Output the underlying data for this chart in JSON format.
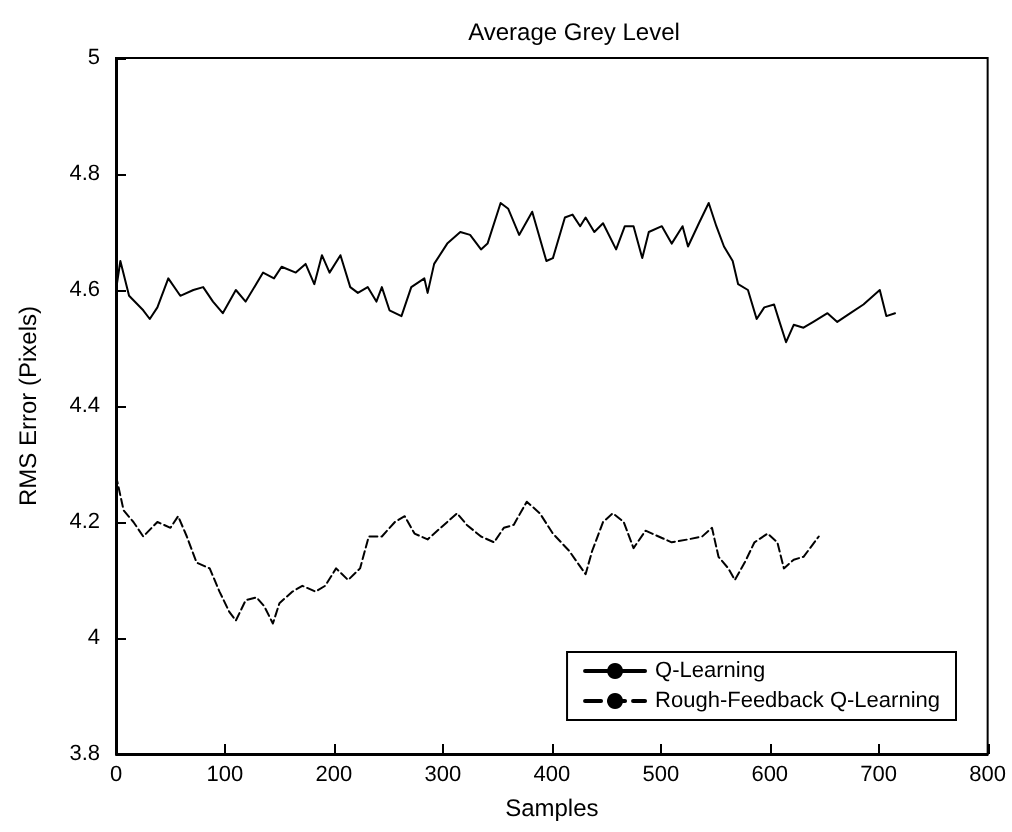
{
  "chart_data": {
    "type": "line",
    "title": "Average Grey Level",
    "xlabel": "Samples",
    "ylabel": "RMS Error (Pixels)",
    "xlim": [
      0,
      800
    ],
    "xticks": [
      0,
      100,
      200,
      300,
      400,
      500,
      600,
      700,
      800
    ],
    "ylim": [
      3.8,
      5
    ],
    "yticks": [
      3.8,
      4,
      4.2,
      4.4,
      4.6,
      4.8,
      5
    ],
    "grid": false,
    "legend": "bottom right",
    "marker": "none",
    "series": [
      {
        "name": "Q-Learning",
        "color": "#000000",
        "line_style": "solid",
        "x": [
          0,
          4,
          12,
          25,
          31,
          38,
          48,
          59,
          71,
          80,
          89,
          98,
          110,
          119,
          135,
          145,
          152,
          165,
          174,
          182,
          189,
          196,
          206,
          215,
          222,
          231,
          239,
          244,
          251,
          262,
          271,
          283,
          286,
          292,
          304,
          316,
          325,
          335,
          341,
          353,
          360,
          370,
          382,
          395,
          401,
          412,
          419,
          426,
          431,
          439,
          447,
          459,
          467,
          475,
          483,
          489,
          501,
          510,
          520,
          525,
          535,
          544,
          551,
          558,
          566,
          571,
          580,
          588,
          595,
          604,
          609,
          615,
          622,
          631,
          640,
          653,
          662,
          674,
          686,
          701,
          707,
          715
        ],
        "values": [
          4.6,
          4.65,
          4.59,
          4.565,
          4.55,
          4.57,
          4.62,
          4.59,
          4.6,
          4.605,
          4.58,
          4.56,
          4.6,
          4.58,
          4.63,
          4.62,
          4.64,
          4.63,
          4.645,
          4.61,
          4.66,
          4.63,
          4.66,
          4.605,
          4.595,
          4.605,
          4.58,
          4.605,
          4.565,
          4.555,
          4.605,
          4.62,
          4.595,
          4.645,
          4.68,
          4.7,
          4.695,
          4.67,
          4.68,
          4.75,
          4.74,
          4.695,
          4.735,
          4.65,
          4.655,
          4.725,
          4.73,
          4.71,
          4.725,
          4.7,
          4.715,
          4.67,
          4.71,
          4.71,
          4.655,
          4.7,
          4.71,
          4.68,
          4.71,
          4.675,
          4.715,
          4.75,
          4.71,
          4.675,
          4.65,
          4.61,
          4.6,
          4.55,
          4.57,
          4.575,
          4.545,
          4.51,
          4.54,
          4.535,
          4.545,
          4.56,
          4.545,
          4.56,
          4.575,
          4.6,
          4.555,
          4.56
        ]
      },
      {
        "name": "Rough-Feedback Q-Learning",
        "color": "#000000",
        "line_style": "dashed",
        "x": [
          0,
          7,
          16,
          25,
          38,
          50,
          57,
          65,
          74,
          86,
          95,
          104,
          110,
          119,
          129,
          136,
          144,
          150,
          162,
          171,
          183,
          192,
          202,
          213,
          224,
          232,
          244,
          256,
          265,
          274,
          286,
          298,
          313,
          322,
          335,
          347,
          356,
          365,
          377,
          389,
          401,
          416,
          431,
          437,
          447,
          456,
          466,
          475,
          486,
          498,
          510,
          525,
          538,
          547,
          553,
          562,
          568,
          577,
          586,
          598,
          607,
          613,
          622,
          631,
          645
        ],
        "values": [
          4.28,
          4.22,
          4.2,
          4.175,
          4.2,
          4.19,
          4.21,
          4.175,
          4.13,
          4.12,
          4.08,
          4.045,
          4.03,
          4.065,
          4.07,
          4.055,
          4.025,
          4.06,
          4.08,
          4.09,
          4.08,
          4.09,
          4.12,
          4.1,
          4.12,
          4.175,
          4.175,
          4.2,
          4.21,
          4.18,
          4.17,
          4.19,
          4.215,
          4.195,
          4.175,
          4.165,
          4.19,
          4.195,
          4.235,
          4.215,
          4.18,
          4.15,
          4.11,
          4.15,
          4.2,
          4.215,
          4.2,
          4.155,
          4.185,
          4.175,
          4.165,
          4.17,
          4.175,
          4.19,
          4.14,
          4.12,
          4.1,
          4.13,
          4.165,
          4.18,
          4.165,
          4.12,
          4.135,
          4.14,
          4.175
        ]
      }
    ]
  }
}
